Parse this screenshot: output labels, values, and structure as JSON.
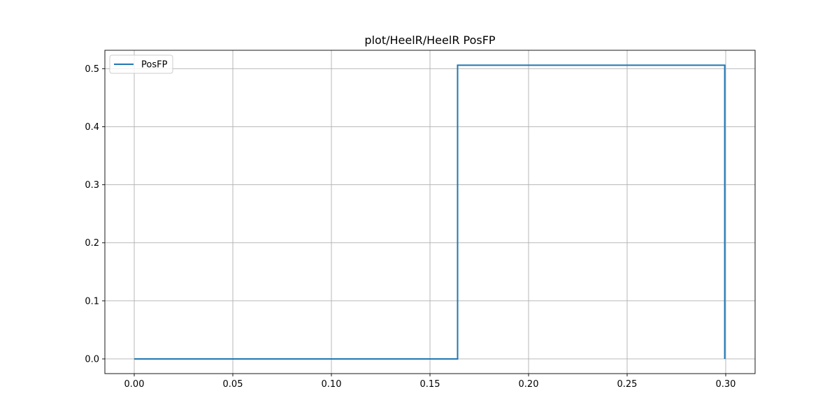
{
  "chart_data": {
    "type": "line",
    "title": "plot/HeelR/HeelR PosFP",
    "xlabel": "",
    "ylabel": "",
    "xlim": [
      -0.0149,
      0.3149
    ],
    "ylim": [
      -0.0253,
      0.5317
    ],
    "xticks": [
      0.0,
      0.05,
      0.1,
      0.15,
      0.2,
      0.25,
      0.3
    ],
    "xtick_labels": [
      "0.00",
      "0.05",
      "0.10",
      "0.15",
      "0.20",
      "0.25",
      "0.30"
    ],
    "yticks": [
      0.0,
      0.1,
      0.2,
      0.3,
      0.4,
      0.5
    ],
    "ytick_labels": [
      "0.0",
      "0.1",
      "0.2",
      "0.3",
      "0.4",
      "0.5"
    ],
    "grid": true,
    "legend_position": "top-left",
    "series": [
      {
        "name": "PosFP",
        "color": "#1f77b4",
        "x": [
          0.0,
          0.164,
          0.164,
          0.2995,
          0.2995
        ],
        "y": [
          0.0,
          0.0,
          0.506,
          0.506,
          0.0
        ]
      }
    ]
  }
}
